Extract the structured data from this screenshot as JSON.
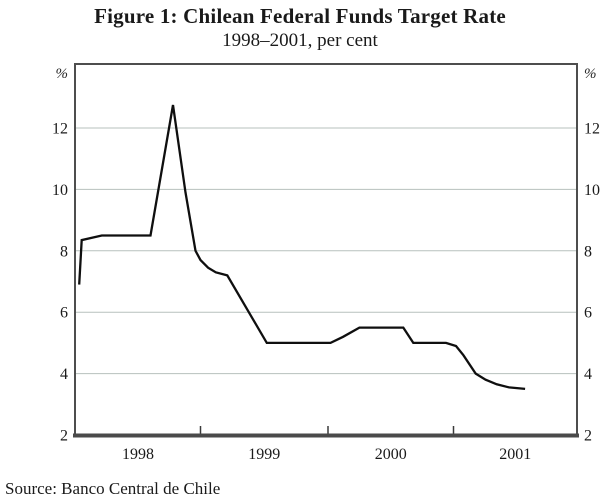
{
  "figure": {
    "title": "Figure 1: Chilean Federal Funds Target Rate",
    "subtitle": "1998–2001, per cent",
    "source": "Source: Banco Central de Chile"
  },
  "chart_data": {
    "type": "line",
    "title": "Figure 1: Chilean Federal Funds Target Rate",
    "subtitle": "1998–2001, per cent",
    "source": "Source: Banco Central de Chile",
    "unit_label": "%",
    "xlim": [
      1998,
      2002
    ],
    "ylim": [
      2,
      14
    ],
    "y_ticks": [
      2,
      4,
      6,
      8,
      10,
      12
    ],
    "x_boundary_ticks": [
      1999,
      2000,
      2001
    ],
    "x_year_labels": [
      "1998",
      "1999",
      "2000",
      "2001"
    ],
    "grid": "horizontal gridlines at labeled y ticks",
    "legend": "none",
    "series": [
      {
        "name": "Chilean federal funds target rate (per cent)",
        "points": [
          [
            1998.03,
            6.9
          ],
          [
            1998.05,
            8.35
          ],
          [
            1998.21,
            8.5
          ],
          [
            1998.6,
            8.5
          ],
          [
            1998.78,
            12.75
          ],
          [
            1998.88,
            9.9
          ],
          [
            1998.96,
            8.0
          ],
          [
            1999.0,
            7.7
          ],
          [
            1999.06,
            7.45
          ],
          [
            1999.12,
            7.3
          ],
          [
            1999.21,
            7.2
          ],
          [
            1999.52,
            5.0
          ],
          [
            2000.02,
            5.0
          ],
          [
            2000.12,
            5.2
          ],
          [
            2000.25,
            5.5
          ],
          [
            2000.6,
            5.5
          ],
          [
            2000.68,
            5.0
          ],
          [
            2000.94,
            5.0
          ],
          [
            2001.02,
            4.9
          ],
          [
            2001.08,
            4.6
          ],
          [
            2001.18,
            4.0
          ],
          [
            2001.26,
            3.8
          ],
          [
            2001.35,
            3.65
          ],
          [
            2001.45,
            3.55
          ],
          [
            2001.58,
            3.5
          ]
        ]
      }
    ]
  },
  "style": {
    "line_color": "#0f0f0f",
    "grid_color": "#b7c1bd",
    "frame_color": "#4e4e4e",
    "axis_color": "#4a4a4a",
    "tick_color": "#3a3a3a",
    "text_color": "#1a1a1a",
    "background": "#ffffff"
  }
}
